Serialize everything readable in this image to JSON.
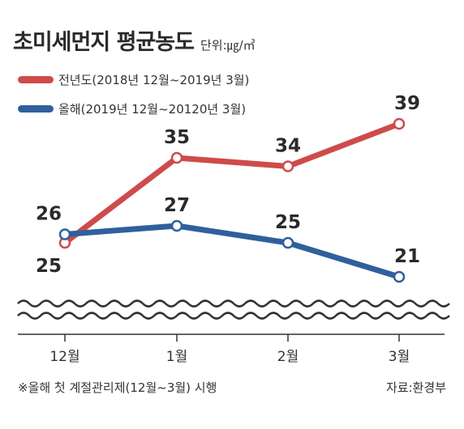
{
  "title": "초미세먼지 평균농도",
  "unit": "단위:㎍/㎥",
  "footnote": "※올해 첫 계절관리제(12월~3월) 시행",
  "source": "자료:환경부",
  "colors": {
    "prev_year": "#cf4b4b",
    "this_year": "#2f609c",
    "axis": "#333333",
    "marker_fill": "#ffffff"
  },
  "chart_data": {
    "type": "line",
    "categories": [
      "12월",
      "1월",
      "2월",
      "3월"
    ],
    "series": [
      {
        "name": "전년도(2018년 12월~2019년 3월)",
        "values": [
          25,
          35,
          34,
          39
        ]
      },
      {
        "name": "올해(2019년 12월~20120년 3월)",
        "values": [
          26,
          27,
          25,
          21
        ]
      }
    ],
    "xlabel": "",
    "ylabel": "",
    "axis_break": true,
    "grid": false,
    "legend_position": "top-left"
  }
}
